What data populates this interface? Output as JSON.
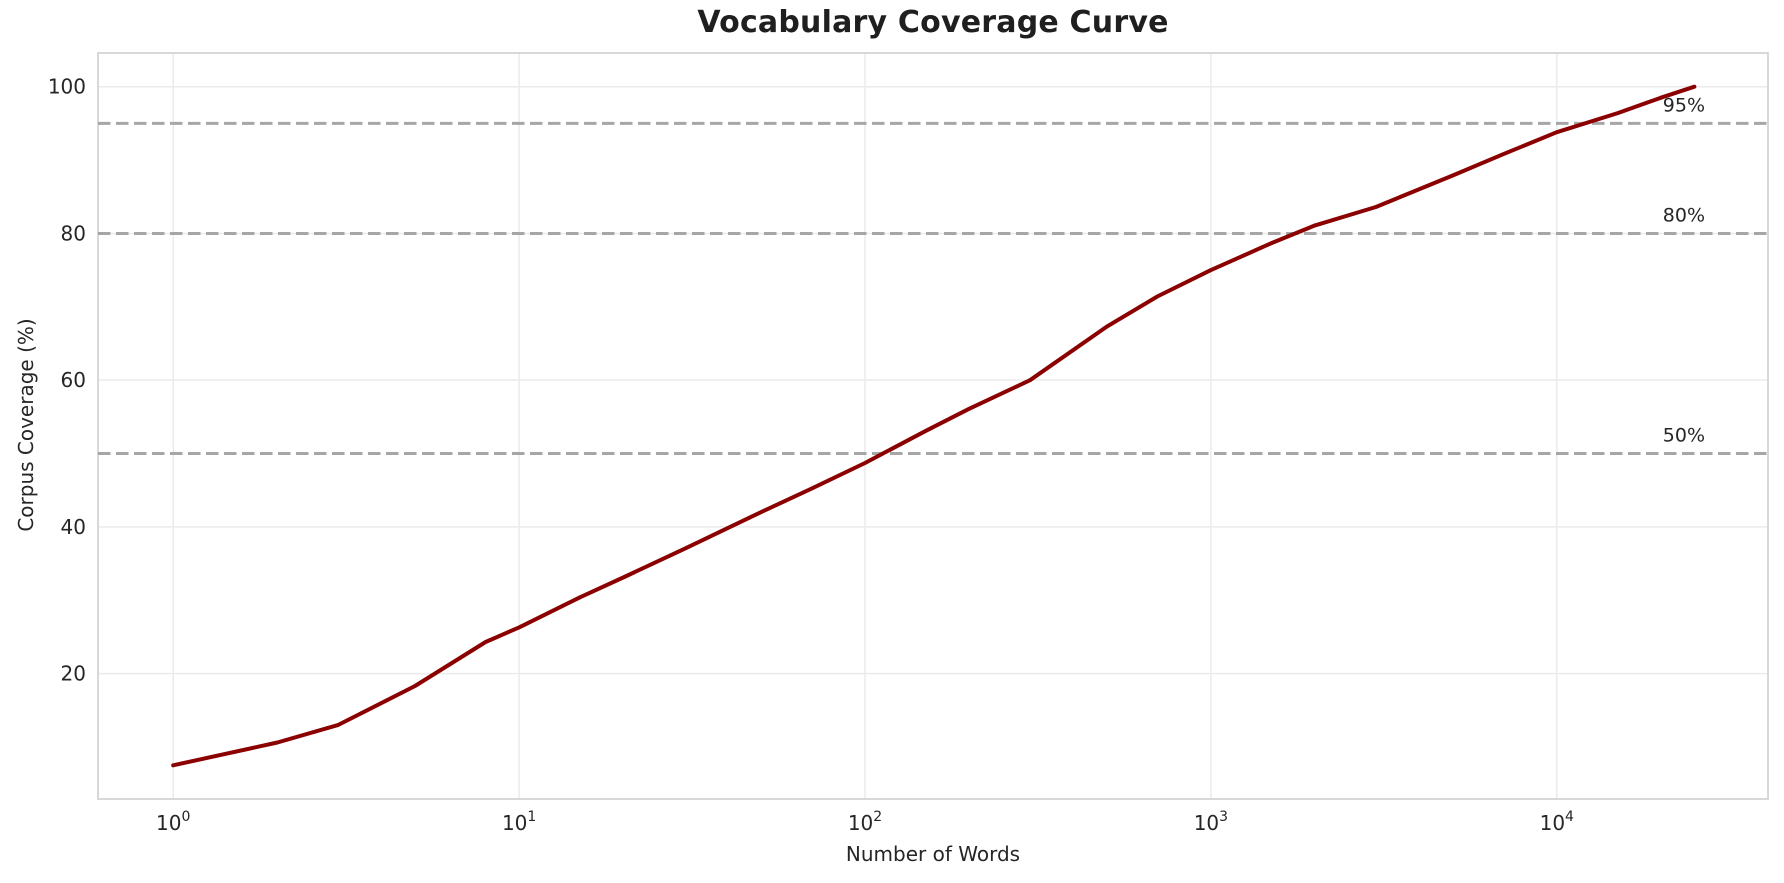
{
  "chart_data": {
    "type": "line",
    "title": "Vocabulary Coverage Curve",
    "xlabel": "Number of Words",
    "ylabel": "Corpus Coverage (%)",
    "x_scale": "log",
    "xlim": [
      0.606,
      40800
    ],
    "ylim": [
      2.9,
      104.6
    ],
    "grid": true,
    "x_ticks": [
      {
        "value": 1,
        "base": "10",
        "exp": "0"
      },
      {
        "value": 10,
        "base": "10",
        "exp": "1"
      },
      {
        "value": 100,
        "base": "10",
        "exp": "2"
      },
      {
        "value": 1000,
        "base": "10",
        "exp": "3"
      },
      {
        "value": 10000,
        "base": "10",
        "exp": "4"
      }
    ],
    "y_ticks": [
      20,
      40,
      60,
      80,
      100
    ],
    "series": [
      {
        "name": "vocabulary-coverage",
        "color": "#8B0000",
        "line_width": 4,
        "x": [
          1,
          2,
          3,
          5,
          8,
          10,
          15,
          20,
          30,
          50,
          70,
          100,
          150,
          200,
          300,
          500,
          700,
          1000,
          1500,
          2000,
          3000,
          5000,
          7000,
          10000,
          15000,
          20000,
          25000
        ],
        "y": [
          7.5,
          10.6,
          13.0,
          18.3,
          24.3,
          26.3,
          30.4,
          33.1,
          37.0,
          42.0,
          45.2,
          48.7,
          53.1,
          56.1,
          60.0,
          67.3,
          71.4,
          75.0,
          78.7,
          81.1,
          83.6,
          87.9,
          90.8,
          93.8,
          96.4,
          98.5,
          100.0
        ]
      }
    ],
    "thresholds": [
      {
        "value": 50,
        "label": "50%"
      },
      {
        "value": 80,
        "label": "80%"
      },
      {
        "value": 95,
        "label": "95%"
      }
    ],
    "style": {
      "background": "#FFFFFF",
      "grid_color": "#EBEBEB",
      "spine_color": "#D4D4D4",
      "threshold_color": "#A6A6A6",
      "threshold_dash": "12.5 5.5",
      "threshold_width": 3,
      "text_color": "#262626",
      "title_color": "#1F1F1F",
      "tick_font_size": 20,
      "exp_font_size": 14,
      "threshold_font_size": 19
    }
  }
}
